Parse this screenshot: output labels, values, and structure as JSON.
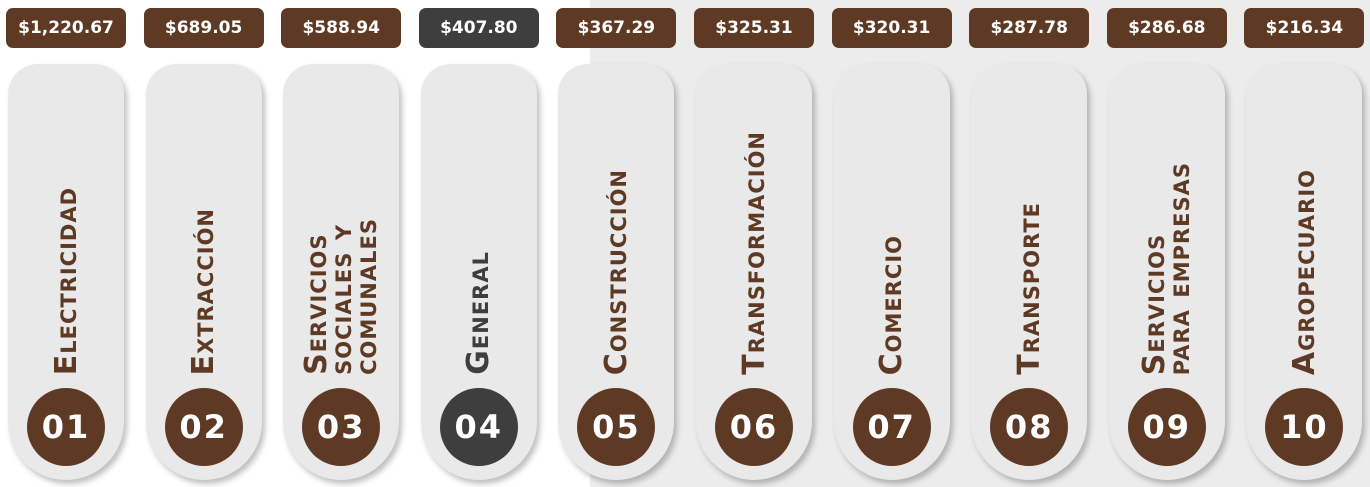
{
  "items": [
    {
      "amount": "$1,220.67",
      "name_lines": [
        "Electricidad"
      ],
      "number": "01",
      "color": "#5e3a25"
    },
    {
      "amount": "$689.05",
      "name_lines": [
        "Extracción"
      ],
      "number": "02",
      "color": "#5e3a25"
    },
    {
      "amount": "$588.94",
      "name_lines": [
        "Servicios",
        "sociales y",
        "comunales"
      ],
      "number": "03",
      "color": "#5e3a25"
    },
    {
      "amount": "$407.80",
      "name_lines": [
        "General"
      ],
      "number": "04",
      "color": "#3e3e3e"
    },
    {
      "amount": "$367.29",
      "name_lines": [
        "Construcción"
      ],
      "number": "05",
      "color": "#5e3a25"
    },
    {
      "amount": "$325.31",
      "name_lines": [
        "Transformación"
      ],
      "number": "06",
      "color": "#5e3a25"
    },
    {
      "amount": "$320.31",
      "name_lines": [
        "Comercio"
      ],
      "number": "07",
      "color": "#5e3a25"
    },
    {
      "amount": "$287.78",
      "name_lines": [
        "Transporte"
      ],
      "number": "08",
      "color": "#5e3a25"
    },
    {
      "amount": "$286.68",
      "name_lines": [
        "Servicios",
        "para empresas"
      ],
      "number": "09",
      "color": "#5e3a25"
    },
    {
      "amount": "$216.34",
      "name_lines": [
        "Agropecuario"
      ],
      "number": "10",
      "color": "#5e3a25"
    }
  ]
}
